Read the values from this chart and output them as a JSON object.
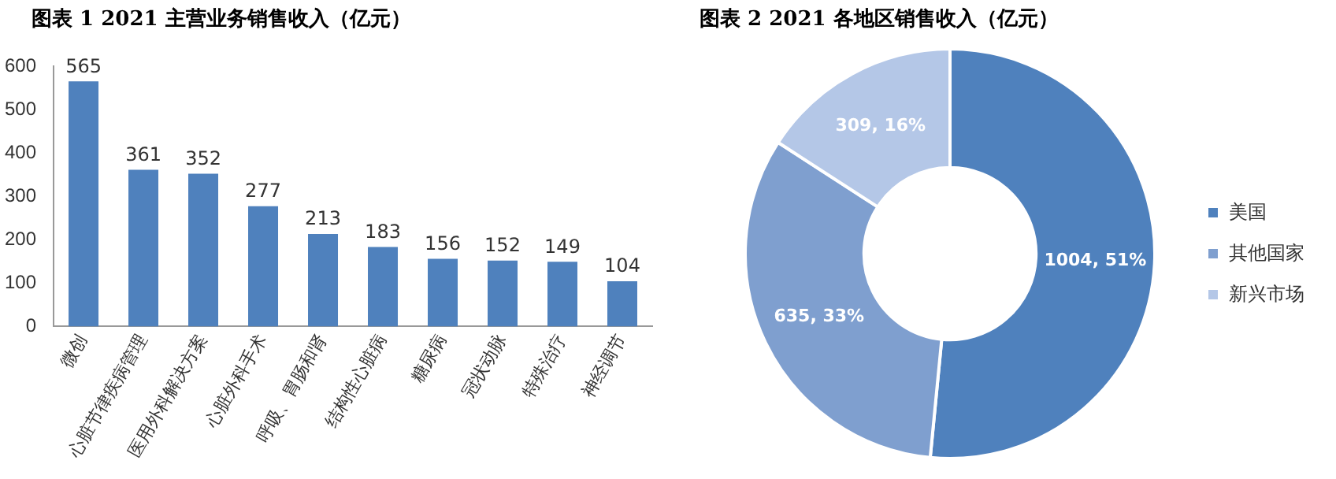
{
  "chart_data": [
    {
      "type": "bar",
      "title": "图表 1 2021 主营业务销售收入（亿元）",
      "categories": [
        "微创",
        "心脏节律疾病管理",
        "医用外科解决方案",
        "心脏外科手术",
        "呼吸、胃肠和肾",
        "结构性心脏病",
        "糖尿病",
        "冠状动脉",
        "特殊治疗",
        "神经调节"
      ],
      "values": [
        565,
        361,
        352,
        277,
        213,
        183,
        156,
        152,
        149,
        104
      ],
      "color": "#4f81bd",
      "ylim": [
        0,
        600
      ],
      "yticks": [
        0,
        100,
        200,
        300,
        400,
        500,
        600
      ],
      "grid": false,
      "data_labels": true,
      "legend": false
    },
    {
      "type": "donut",
      "title": "图表 2 2021 各地区销售收入（亿元）",
      "categories": [
        "美国",
        "其他国家",
        "新兴市场"
      ],
      "values": [
        1004,
        635,
        309
      ],
      "colors": [
        "#4f81bd",
        "#7f9fcf",
        "#b4c7e7"
      ],
      "value_labels": [
        "1004, 51%",
        "635, 33%",
        "309, 16%"
      ],
      "legend": "right"
    }
  ]
}
